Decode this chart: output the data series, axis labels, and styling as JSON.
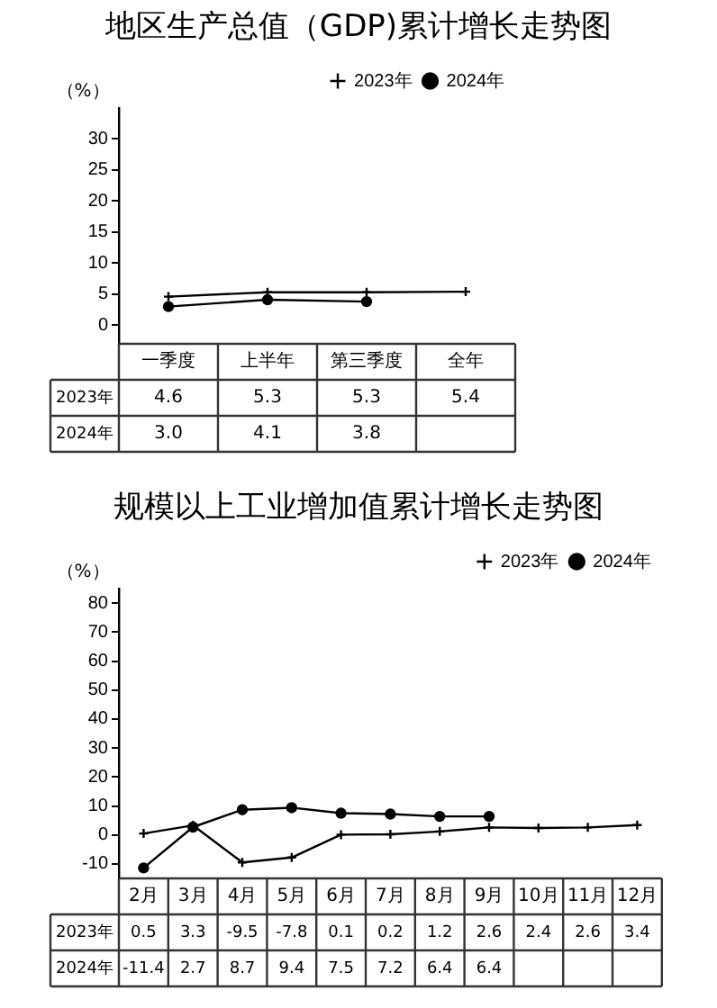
{
  "chart_data": [
    {
      "type": "line",
      "title": "地区生产总值（GDP)累计增长走势图",
      "ylabel": "（%）",
      "categories": [
        "一季度",
        "上半年",
        "第三季度",
        "全年"
      ],
      "series": [
        {
          "name": "2023年",
          "color": "#000000",
          "marker": "cross",
          "values": [
            4.6,
            5.3,
            5.3,
            5.4
          ]
        },
        {
          "name": "2024年",
          "color": "#000000",
          "marker": "circle",
          "values": [
            3.0,
            4.1,
            3.8,
            null
          ],
          "value_labels": [
            "3.0",
            "4.1",
            "3.8",
            null
          ]
        }
      ],
      "ylim": [
        -3,
        35
      ],
      "yticks": [
        0,
        5,
        10,
        15,
        20,
        25,
        30
      ],
      "grid": false,
      "legend": "top right",
      "data_labels": true
    },
    {
      "type": "line",
      "title": "规模以上工业增加值累计增长走势图",
      "ylabel": "（%）",
      "categories": [
        "2月",
        "3月",
        "4月",
        "5月",
        "6月",
        "7月",
        "8月",
        "9月",
        "10月",
        "11月",
        "12月"
      ],
      "series": [
        {
          "name": "2023年",
          "color": "#000000",
          "marker": "cross",
          "values": [
            0.5,
            3.3,
            -9.5,
            -7.8,
            0.1,
            0.2,
            1.2,
            2.6,
            2.4,
            2.6,
            3.4
          ]
        },
        {
          "name": "2024年",
          "color": "#000000",
          "marker": "circle",
          "values": [
            -11.4,
            2.7,
            8.7,
            9.4,
            7.5,
            7.2,
            6.4,
            6.4,
            null,
            null,
            null
          ]
        }
      ],
      "ylim": [
        -15,
        85
      ],
      "yticks": [
        -10,
        0,
        10,
        20,
        30,
        40,
        50,
        60,
        70,
        80
      ],
      "grid": false,
      "legend": "top right",
      "data_labels": true
    }
  ]
}
